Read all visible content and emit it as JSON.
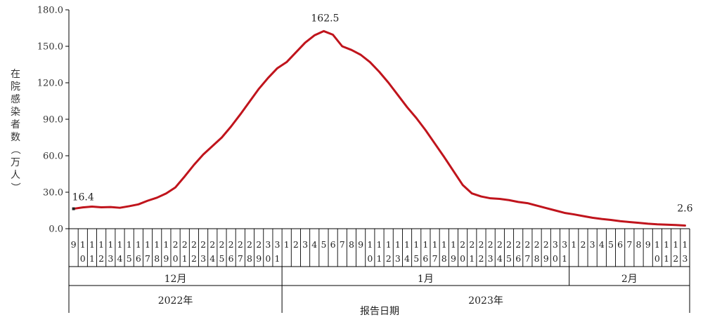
{
  "chart_data": {
    "type": "line",
    "ylabel": "在院感染者数（万人）",
    "xlabel": "报告日期",
    "ylim": [
      0,
      180
    ],
    "y_ticks": [
      "0.0",
      "30.0",
      "60.0",
      "90.0",
      "120.0",
      "150.0",
      "180.0"
    ],
    "grid": false,
    "legend": "none",
    "color": "#c0141c",
    "x_days": [
      {
        "top": "9",
        "bottom": ""
      },
      {
        "top": "1",
        "bottom": "0"
      },
      {
        "top": "1",
        "bottom": "1"
      },
      {
        "top": "1",
        "bottom": "2"
      },
      {
        "top": "1",
        "bottom": "3"
      },
      {
        "top": "1",
        "bottom": "4"
      },
      {
        "top": "1",
        "bottom": "5"
      },
      {
        "top": "1",
        "bottom": "6"
      },
      {
        "top": "1",
        "bottom": "7"
      },
      {
        "top": "1",
        "bottom": "8"
      },
      {
        "top": "1",
        "bottom": "9"
      },
      {
        "top": "2",
        "bottom": "0"
      },
      {
        "top": "2",
        "bottom": "1"
      },
      {
        "top": "2",
        "bottom": "2"
      },
      {
        "top": "2",
        "bottom": "3"
      },
      {
        "top": "2",
        "bottom": "4"
      },
      {
        "top": "2",
        "bottom": "5"
      },
      {
        "top": "2",
        "bottom": "6"
      },
      {
        "top": "2",
        "bottom": "7"
      },
      {
        "top": "2",
        "bottom": "8"
      },
      {
        "top": "2",
        "bottom": "9"
      },
      {
        "top": "3",
        "bottom": "0"
      },
      {
        "top": "3",
        "bottom": "1"
      },
      {
        "top": "1",
        "bottom": ""
      },
      {
        "top": "2",
        "bottom": ""
      },
      {
        "top": "3",
        "bottom": ""
      },
      {
        "top": "4",
        "bottom": ""
      },
      {
        "top": "5",
        "bottom": ""
      },
      {
        "top": "6",
        "bottom": ""
      },
      {
        "top": "7",
        "bottom": ""
      },
      {
        "top": "8",
        "bottom": ""
      },
      {
        "top": "9",
        "bottom": ""
      },
      {
        "top": "1",
        "bottom": "0"
      },
      {
        "top": "1",
        "bottom": "1"
      },
      {
        "top": "1",
        "bottom": "2"
      },
      {
        "top": "1",
        "bottom": "3"
      },
      {
        "top": "1",
        "bottom": "4"
      },
      {
        "top": "1",
        "bottom": "5"
      },
      {
        "top": "1",
        "bottom": "6"
      },
      {
        "top": "1",
        "bottom": "7"
      },
      {
        "top": "1",
        "bottom": "8"
      },
      {
        "top": "1",
        "bottom": "9"
      },
      {
        "top": "2",
        "bottom": "0"
      },
      {
        "top": "2",
        "bottom": "1"
      },
      {
        "top": "2",
        "bottom": "2"
      },
      {
        "top": "2",
        "bottom": "3"
      },
      {
        "top": "2",
        "bottom": "4"
      },
      {
        "top": "2",
        "bottom": "5"
      },
      {
        "top": "2",
        "bottom": "6"
      },
      {
        "top": "2",
        "bottom": "7"
      },
      {
        "top": "2",
        "bottom": "8"
      },
      {
        "top": "2",
        "bottom": "9"
      },
      {
        "top": "3",
        "bottom": "0"
      },
      {
        "top": "3",
        "bottom": "1"
      },
      {
        "top": "1",
        "bottom": ""
      },
      {
        "top": "2",
        "bottom": ""
      },
      {
        "top": "3",
        "bottom": ""
      },
      {
        "top": "4",
        "bottom": ""
      },
      {
        "top": "5",
        "bottom": ""
      },
      {
        "top": "6",
        "bottom": ""
      },
      {
        "top": "7",
        "bottom": ""
      },
      {
        "top": "8",
        "bottom": ""
      },
      {
        "top": "9",
        "bottom": ""
      },
      {
        "top": "1",
        "bottom": "0"
      },
      {
        "top": "1",
        "bottom": "1"
      },
      {
        "top": "1",
        "bottom": "2"
      },
      {
        "top": "1",
        "bottom": "3"
      }
    ],
    "months": [
      {
        "label": "12月",
        "count": 23
      },
      {
        "label": "1月",
        "count": 31
      },
      {
        "label": "2月",
        "count": 13
      }
    ],
    "years": [
      {
        "label": "2022年",
        "count": 23
      },
      {
        "label": "2023年",
        "count": 44
      }
    ],
    "values": [
      16.4,
      17.5,
      18.2,
      17.6,
      17.8,
      17.2,
      18.5,
      20,
      23,
      25.5,
      29,
      34,
      43,
      52.5,
      61,
      68,
      75,
      84,
      94,
      104.5,
      115,
      124,
      132,
      137,
      145,
      153,
      159,
      162.5,
      159.5,
      150,
      147,
      143,
      137,
      129,
      120,
      110,
      100,
      91,
      81,
      70,
      59,
      47.5,
      36,
      29,
      26.5,
      25,
      24.5,
      23.5,
      22,
      21,
      19,
      17,
      15,
      13,
      11.8,
      10.4,
      9,
      8,
      7.2,
      6.2,
      5.5,
      4.8,
      4.1,
      3.6,
      3.3,
      3.0,
      2.6
    ],
    "annotations": [
      {
        "index": 0,
        "label": "16.4"
      },
      {
        "index": 27,
        "label": "162.5"
      },
      {
        "index": 66,
        "label": "2.6"
      }
    ]
  }
}
